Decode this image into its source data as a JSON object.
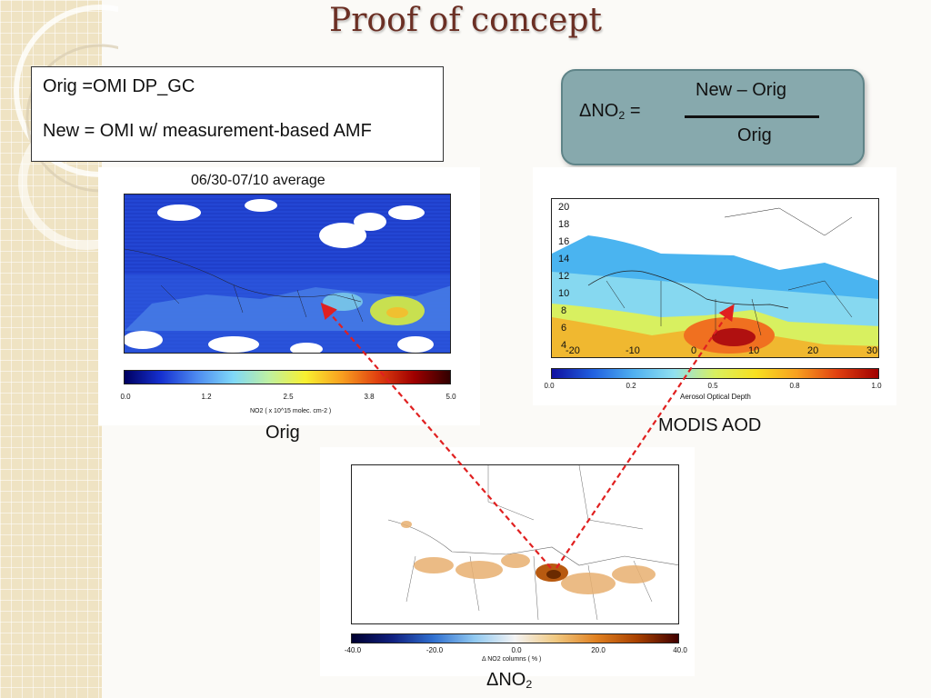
{
  "title": "Proof of concept",
  "definitions": {
    "orig": "Orig =OMI DP_GC",
    "new": "New = OMI w/ measurement-based AMF"
  },
  "formula": {
    "lhs_prefix": "ΔNO",
    "lhs_sub": "2",
    "lhs_suffix": " =",
    "numerator": "New – Orig",
    "denominator": "Orig"
  },
  "orig_map": {
    "title": "06/30-07/10 average",
    "colorbar_ticks": [
      "0.0",
      "1.2",
      "2.5",
      "3.8",
      "5.0"
    ],
    "colorbar_label": "NO2 ( x 10^15 molec. cm-2 )",
    "caption": "Orig"
  },
  "modis_map": {
    "y_ticks": [
      "20",
      "18",
      "16",
      "14",
      "12",
      "10",
      "8",
      "6",
      "4"
    ],
    "x_ticks": [
      "-20",
      "-10",
      "0",
      "10",
      "20",
      "30"
    ],
    "colorbar_ticks": [
      "0.0",
      "0.2",
      "0.5",
      "0.8",
      "1.0"
    ],
    "colorbar_label": "Aerosol Optical Depth",
    "caption": "MODIS AOD"
  },
  "delta_map": {
    "colorbar_ticks": [
      "-40.0",
      "-20.0",
      "0.0",
      "20.0",
      "40.0"
    ],
    "colorbar_label": "Δ NO2 columns ( % )",
    "caption_prefix": "ΔNO",
    "caption_sub": "2"
  },
  "colors": {
    "title": "#6b2f24",
    "formula_box": "#87a9ad",
    "arrow": "#e02020"
  }
}
